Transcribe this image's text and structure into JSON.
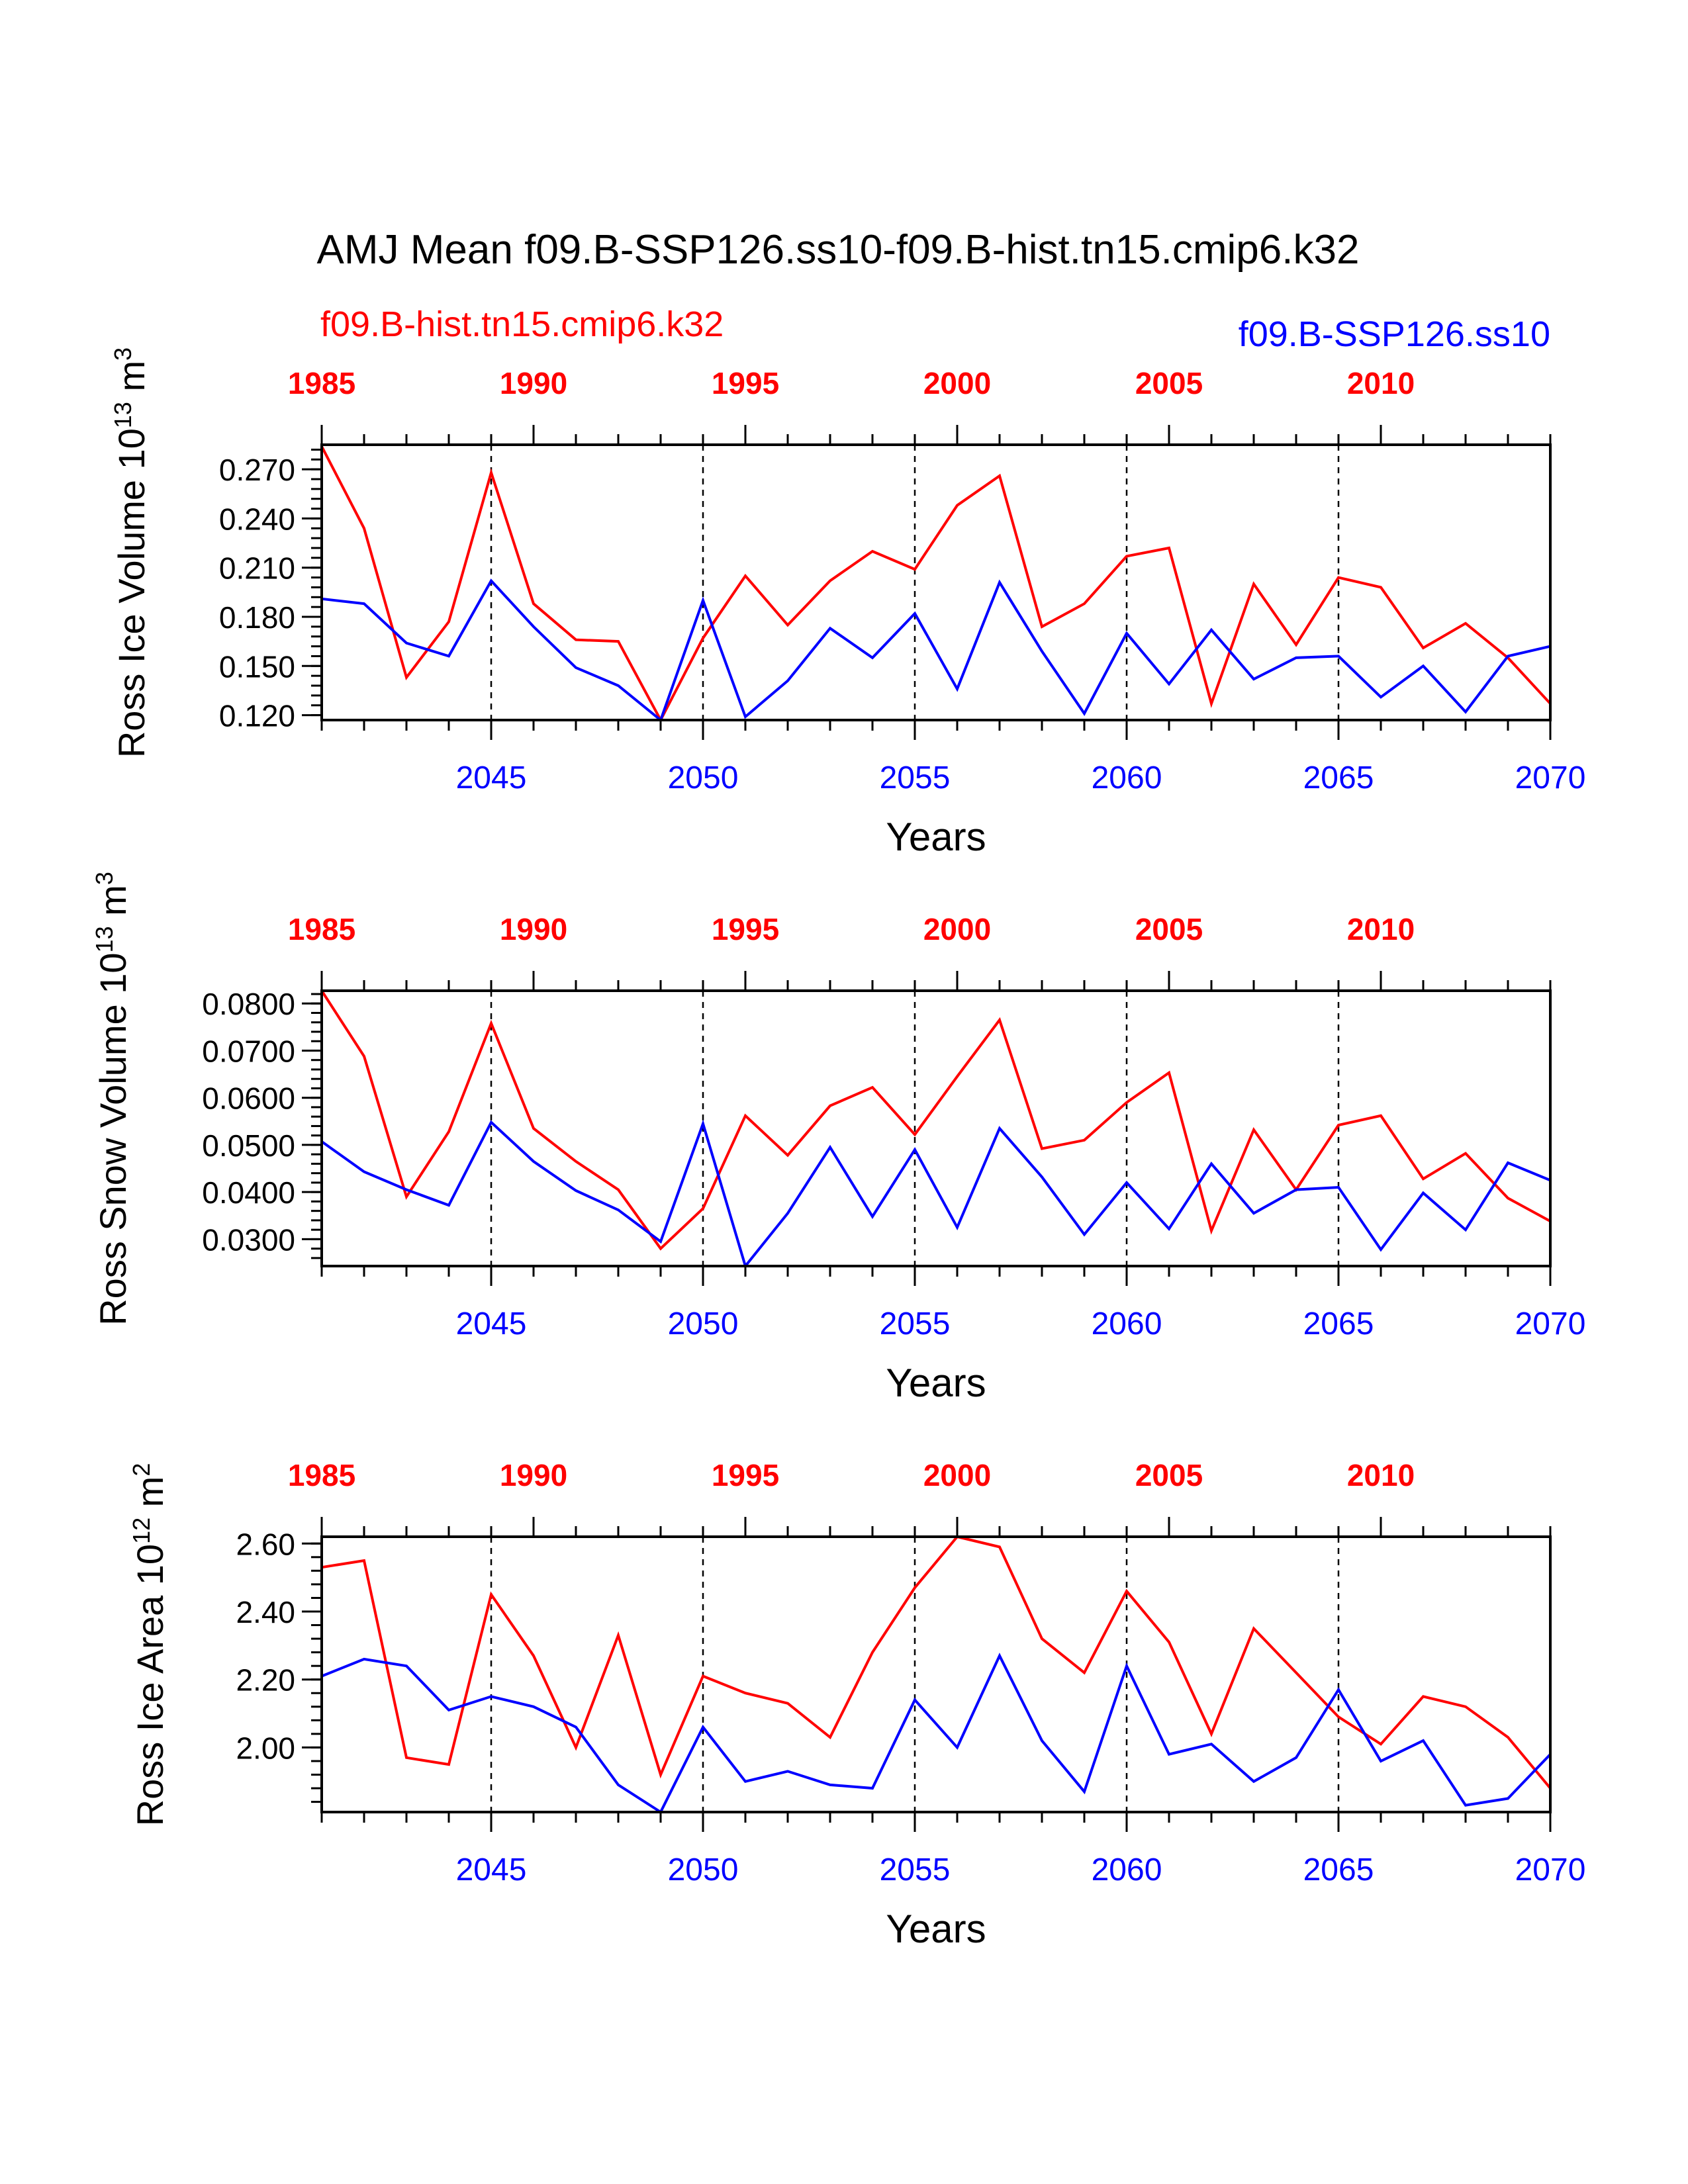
{
  "title": "AMJ Mean f09.B-SSP126.ss10-f09.B-hist.tn15.cmip6.k32",
  "legend": {
    "case1": {
      "label": "f09.B-hist.tn15.cmip6.k32",
      "color": "#ff0000"
    },
    "case2": {
      "label": "f09.B-SSP126.ss10",
      "color": "#0000ff"
    }
  },
  "chart_data": [
    {
      "type": "line",
      "ylabel": "Ross Ice Volume 10",
      "ylabel_exp": "13",
      "ylabel_unit": " m",
      "ylabel_unit_exp": "3",
      "xlabel": "Years",
      "ylim": [
        0.117,
        0.285
      ],
      "yticks": [
        0.12,
        0.15,
        0.18,
        0.21,
        0.24,
        0.27
      ],
      "ytick_labels": [
        "0.120",
        "0.150",
        "0.180",
        "0.210",
        "0.240",
        "0.270"
      ],
      "xlim": [
        2041,
        2070
      ],
      "x": [
        2041,
        2042,
        2043,
        2044,
        2045,
        2046,
        2047,
        2048,
        2049,
        2050,
        2051,
        2052,
        2053,
        2054,
        2055,
        2056,
        2057,
        2058,
        2059,
        2060,
        2061,
        2062,
        2063,
        2064,
        2065,
        2066,
        2067,
        2068,
        2069,
        2070
      ],
      "bottom_ticks": [
        2045,
        2050,
        2055,
        2060,
        2065,
        2070
      ],
      "bottom_tick_labels": [
        "2045",
        "2050",
        "2055",
        "2060",
        "2065",
        "2070"
      ],
      "top_ticks": [
        1985,
        1990,
        1995,
        2000,
        2005,
        2010
      ],
      "top_tick_labels": [
        "1985",
        "1990",
        "1995",
        "2000",
        "2005",
        "2010"
      ],
      "series": [
        {
          "name": "f09.B-hist.tn15.cmip6.k32",
          "color": "#ff0000",
          "axis": "top",
          "x": [
            1985,
            1986,
            1987,
            1988,
            1989,
            1990,
            1991,
            1992,
            1993,
            1994,
            1995,
            1996,
            1997,
            1998,
            1999,
            2000,
            2001,
            2002,
            2003,
            2004,
            2005,
            2006,
            2007,
            2008,
            2009,
            2010,
            2011,
            2012,
            2013,
            2014
          ],
          "values": [
            0.284,
            0.234,
            0.143,
            0.177,
            0.268,
            0.188,
            0.166,
            0.165,
            0.117,
            0.167,
            0.205,
            0.175,
            0.202,
            0.22,
            0.209,
            0.248,
            0.266,
            0.174,
            0.188,
            0.217,
            0.222,
            0.127,
            0.2,
            0.163,
            0.204,
            0.198,
            0.161,
            0.176,
            0.155,
            0.127
          ]
        },
        {
          "name": "f09.B-SSP126.ss10",
          "color": "#0000ff",
          "axis": "bottom",
          "x": [
            2041,
            2042,
            2043,
            2044,
            2045,
            2046,
            2047,
            2048,
            2049,
            2050,
            2051,
            2052,
            2053,
            2054,
            2055,
            2056,
            2057,
            2058,
            2059,
            2060,
            2061,
            2062,
            2063,
            2064,
            2065,
            2066,
            2067,
            2068,
            2069,
            2070
          ],
          "values": [
            0.191,
            0.188,
            0.164,
            0.156,
            0.202,
            0.174,
            0.149,
            0.138,
            0.117,
            0.19,
            0.119,
            0.141,
            0.173,
            0.155,
            0.182,
            0.136,
            0.201,
            0.159,
            0.121,
            0.17,
            0.139,
            0.172,
            0.142,
            0.155,
            0.156,
            0.131,
            0.15,
            0.122,
            0.156,
            0.162
          ]
        }
      ]
    },
    {
      "type": "line",
      "ylabel": "Ross Snow Volume 10",
      "ylabel_exp": "13",
      "ylabel_unit": " m",
      "ylabel_unit_exp": "3",
      "xlabel": "Years",
      "ylim": [
        0.0243,
        0.0827
      ],
      "yticks": [
        0.03,
        0.04,
        0.05,
        0.06,
        0.07,
        0.08
      ],
      "ytick_labels": [
        "0.0300",
        "0.0400",
        "0.0500",
        "0.0600",
        "0.0700",
        "0.0800"
      ],
      "xlim": [
        2041,
        2070
      ],
      "x": [
        2041,
        2042,
        2043,
        2044,
        2045,
        2046,
        2047,
        2048,
        2049,
        2050,
        2051,
        2052,
        2053,
        2054,
        2055,
        2056,
        2057,
        2058,
        2059,
        2060,
        2061,
        2062,
        2063,
        2064,
        2065,
        2066,
        2067,
        2068,
        2069,
        2070
      ],
      "bottom_ticks": [
        2045,
        2050,
        2055,
        2060,
        2065,
        2070
      ],
      "bottom_tick_labels": [
        "2045",
        "2050",
        "2055",
        "2060",
        "2065",
        "2070"
      ],
      "top_ticks": [
        1985,
        1990,
        1995,
        2000,
        2005,
        2010
      ],
      "top_tick_labels": [
        "1985",
        "1990",
        "1995",
        "2000",
        "2005",
        "2010"
      ],
      "series": [
        {
          "name": "f09.B-hist.tn15.cmip6.k32",
          "color": "#ff0000",
          "axis": "top",
          "x": [
            1985,
            1986,
            1987,
            1988,
            1989,
            1990,
            1991,
            1992,
            1993,
            1994,
            1995,
            1996,
            1997,
            1998,
            1999,
            2000,
            2001,
            2002,
            2003,
            2004,
            2005,
            2006,
            2007,
            2008,
            2009,
            2010,
            2011,
            2012,
            2013,
            2014
          ],
          "values": [
            0.0827,
            0.0688,
            0.039,
            0.0528,
            0.0758,
            0.0535,
            0.0465,
            0.0405,
            0.028,
            0.0365,
            0.0562,
            0.0478,
            0.0583,
            0.0622,
            0.0522,
            0.0645,
            0.0765,
            0.0492,
            0.051,
            0.059,
            0.0653,
            0.0318,
            0.0532,
            0.0405,
            0.0542,
            0.0562,
            0.0428,
            0.0482,
            0.0387,
            0.0338
          ]
        },
        {
          "name": "f09.B-SSP126.ss10",
          "color": "#0000ff",
          "axis": "bottom",
          "x": [
            2041,
            2042,
            2043,
            2044,
            2045,
            2046,
            2047,
            2048,
            2049,
            2050,
            2051,
            2052,
            2053,
            2054,
            2055,
            2056,
            2057,
            2058,
            2059,
            2060,
            2061,
            2062,
            2063,
            2064,
            2065,
            2066,
            2067,
            2068,
            2069,
            2070
          ],
          "values": [
            0.0507,
            0.0443,
            0.0405,
            0.0372,
            0.0548,
            0.0465,
            0.0403,
            0.0362,
            0.0295,
            0.0545,
            0.0243,
            0.0355,
            0.0495,
            0.0348,
            0.049,
            0.0325,
            0.0535,
            0.0432,
            0.031,
            0.042,
            0.0322,
            0.046,
            0.0355,
            0.0405,
            0.041,
            0.0278,
            0.0398,
            0.032,
            0.0462,
            0.0425
          ]
        }
      ]
    },
    {
      "type": "line",
      "ylabel": "Ross Ice Area 10",
      "ylabel_exp": "12",
      "ylabel_unit": " m",
      "ylabel_unit_exp": "2",
      "xlabel": "Years",
      "ylim": [
        1.81,
        2.62
      ],
      "yticks": [
        2.0,
        2.2,
        2.4,
        2.6
      ],
      "ytick_labels": [
        "2.00",
        "2.20",
        "2.40",
        "2.60"
      ],
      "xlim": [
        2041,
        2070
      ],
      "x": [
        2041,
        2042,
        2043,
        2044,
        2045,
        2046,
        2047,
        2048,
        2049,
        2050,
        2051,
        2052,
        2053,
        2054,
        2055,
        2056,
        2057,
        2058,
        2059,
        2060,
        2061,
        2062,
        2063,
        2064,
        2065,
        2066,
        2067,
        2068,
        2069,
        2070
      ],
      "bottom_ticks": [
        2045,
        2050,
        2055,
        2060,
        2065,
        2070
      ],
      "bottom_tick_labels": [
        "2045",
        "2050",
        "2055",
        "2060",
        "2065",
        "2070"
      ],
      "top_ticks": [
        1985,
        1990,
        1995,
        2000,
        2005,
        2010
      ],
      "top_tick_labels": [
        "1985",
        "1990",
        "1995",
        "2000",
        "2005",
        "2010"
      ],
      "series": [
        {
          "name": "f09.B-hist.tn15.cmip6.k32",
          "color": "#ff0000",
          "axis": "top",
          "x": [
            1985,
            1986,
            1987,
            1988,
            1989,
            1990,
            1991,
            1992,
            1993,
            1994,
            1995,
            1996,
            1997,
            1998,
            1999,
            2000,
            2001,
            2002,
            2003,
            2004,
            2005,
            2006,
            2007,
            2008,
            2009,
            2010,
            2011,
            2012,
            2013,
            2014
          ],
          "values": [
            2.53,
            2.55,
            1.97,
            1.95,
            2.45,
            2.27,
            2.0,
            2.33,
            1.92,
            2.21,
            2.16,
            2.13,
            2.03,
            2.28,
            2.47,
            2.62,
            2.59,
            2.32,
            2.22,
            2.46,
            2.31,
            2.04,
            2.35,
            2.22,
            2.09,
            2.01,
            2.15,
            2.12,
            2.03,
            1.88
          ]
        },
        {
          "name": "f09.B-SSP126.ss10",
          "color": "#0000ff",
          "axis": "bottom",
          "x": [
            2041,
            2042,
            2043,
            2044,
            2045,
            2046,
            2047,
            2048,
            2049,
            2050,
            2051,
            2052,
            2053,
            2054,
            2055,
            2056,
            2057,
            2058,
            2059,
            2060,
            2061,
            2062,
            2063,
            2064,
            2065,
            2066,
            2067,
            2068,
            2069,
            2070
          ],
          "values": [
            2.21,
            2.26,
            2.24,
            2.11,
            2.15,
            2.12,
            2.06,
            1.89,
            1.81,
            2.06,
            1.9,
            1.93,
            1.89,
            1.88,
            2.14,
            2.0,
            2.27,
            2.02,
            1.87,
            2.24,
            1.98,
            2.01,
            1.9,
            1.97,
            2.17,
            1.96,
            2.02,
            1.83,
            1.85,
            1.98
          ]
        }
      ]
    }
  ]
}
